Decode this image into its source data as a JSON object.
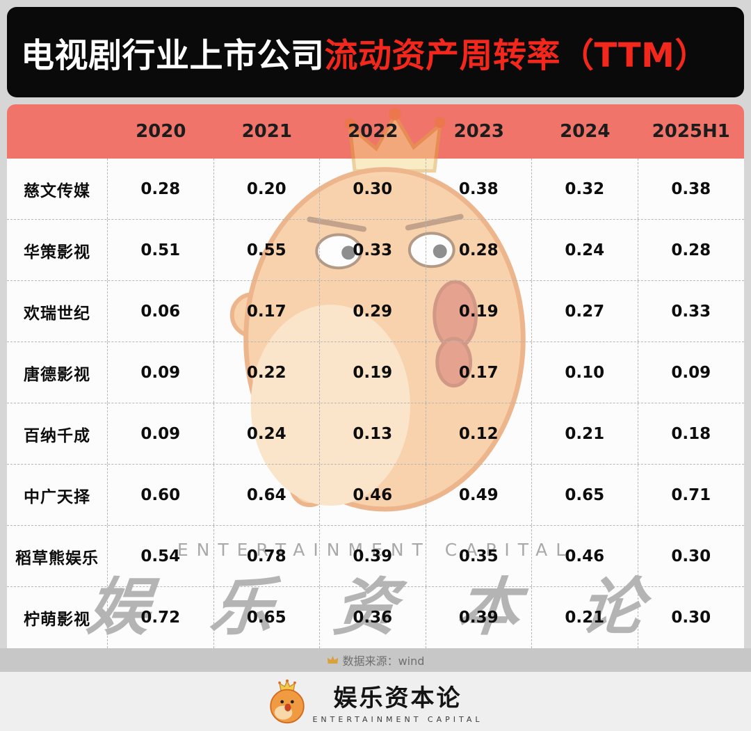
{
  "title": {
    "black": "电视剧行业上市公司",
    "red": "流动资产周转率（TTM）"
  },
  "table": {
    "header": [
      "",
      "2020",
      "2021",
      "2022",
      "2023",
      "2024",
      "2025H1"
    ],
    "rows": [
      {
        "name": "慈文传媒",
        "values": [
          "0.28",
          "0.20",
          "0.30",
          "0.38",
          "0.32",
          "0.38"
        ]
      },
      {
        "name": "华策影视",
        "values": [
          "0.51",
          "0.55",
          "0.33",
          "0.28",
          "0.24",
          "0.28"
        ]
      },
      {
        "name": "欢瑞世纪",
        "values": [
          "0.06",
          "0.17",
          "0.29",
          "0.19",
          "0.27",
          "0.33"
        ]
      },
      {
        "name": "唐德影视",
        "values": [
          "0.09",
          "0.22",
          "0.19",
          "0.17",
          "0.10",
          "0.09"
        ]
      },
      {
        "name": "百纳千成",
        "values": [
          "0.09",
          "0.24",
          "0.13",
          "0.12",
          "0.21",
          "0.18"
        ]
      },
      {
        "name": "中广天择",
        "values": [
          "0.60",
          "0.64",
          "0.46",
          "0.49",
          "0.65",
          "0.71"
        ]
      },
      {
        "name": "稻草熊娱乐",
        "values": [
          "0.54",
          "0.78",
          "0.39",
          "0.35",
          "0.46",
          "0.30"
        ]
      },
      {
        "name": "柠萌影视",
        "values": [
          "0.72",
          "0.65",
          "0.36",
          "0.39",
          "0.21",
          "0.30"
        ]
      }
    ]
  },
  "watermark": {
    "en": "ENTERTAINMENT CAPITAL",
    "cn": "娱 乐 资 本 论"
  },
  "source": {
    "label": "数据来源：wind"
  },
  "brand": {
    "cn": "娱乐资本论",
    "en": "ENTERTAINMENT CAPITAL"
  },
  "colors": {
    "title_bar_bg": "#0a0a0a",
    "title_red": "#f4271c",
    "header_bg": "#f0746a",
    "mascot_orange": "#f5a95f",
    "mascot_red": "#cf4a22",
    "crown_gold": "#f6db8d"
  },
  "chart_data": {
    "type": "table",
    "title": "电视剧行业上市公司流动资产周转率（TTM）",
    "categories": [
      "2020",
      "2021",
      "2022",
      "2023",
      "2024",
      "2025H1"
    ],
    "series": [
      {
        "name": "慈文传媒",
        "values": [
          0.28,
          0.2,
          0.3,
          0.38,
          0.32,
          0.38
        ]
      },
      {
        "name": "华策影视",
        "values": [
          0.51,
          0.55,
          0.33,
          0.28,
          0.24,
          0.28
        ]
      },
      {
        "name": "欢瑞世纪",
        "values": [
          0.06,
          0.17,
          0.29,
          0.19,
          0.27,
          0.33
        ]
      },
      {
        "name": "唐德影视",
        "values": [
          0.09,
          0.22,
          0.19,
          0.17,
          0.1,
          0.09
        ]
      },
      {
        "name": "百纳千成",
        "values": [
          0.09,
          0.24,
          0.13,
          0.12,
          0.21,
          0.18
        ]
      },
      {
        "name": "中广天择",
        "values": [
          0.6,
          0.64,
          0.46,
          0.49,
          0.65,
          0.71
        ]
      },
      {
        "name": "稻草熊娱乐",
        "values": [
          0.54,
          0.78,
          0.39,
          0.35,
          0.46,
          0.3
        ]
      },
      {
        "name": "柠萌影视",
        "values": [
          0.72,
          0.65,
          0.36,
          0.39,
          0.21,
          0.3
        ]
      }
    ],
    "source": "wind"
  }
}
